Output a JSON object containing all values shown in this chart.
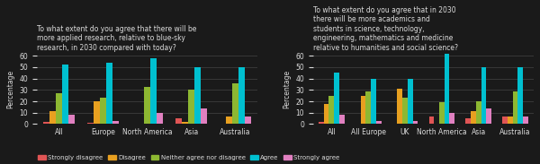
{
  "chart1": {
    "title": "To what extent do you agree that there will be\nmore applied research, relative to blue-sky\nresearch, in 2030 compared with today?",
    "categories": [
      "All",
      "Europe",
      "North America",
      "Asia",
      "Australia"
    ],
    "series": {
      "Strongly disagree": [
        2,
        1,
        0,
        5,
        0
      ],
      "Disagree": [
        11,
        20,
        0,
        2,
        7
      ],
      "Neither agree nor disagree": [
        27,
        23,
        33,
        30,
        36
      ],
      "Agree": [
        52,
        54,
        58,
        50,
        50
      ],
      "Strongly agree": [
        8,
        3,
        10,
        14,
        7
      ]
    }
  },
  "chart2": {
    "title": "To what extent do you agree that in 2030\nthere will be more academics and\nstudents in science, technology,\nengineering, mathematics and medicine\nrelative to humanities and social science?",
    "categories": [
      "All",
      "All Europe",
      "UK",
      "North America",
      "Asia",
      "Australia"
    ],
    "series": {
      "Strongly disagree": [
        2,
        0,
        0,
        7,
        5,
        7
      ],
      "Disagree": [
        18,
        25,
        31,
        0,
        11,
        7
      ],
      "Neither agree nor disagree": [
        25,
        29,
        23,
        19,
        20,
        29
      ],
      "Agree": [
        45,
        40,
        40,
        62,
        50,
        50
      ],
      "Strongly agree": [
        8,
        3,
        3,
        10,
        14,
        7
      ]
    }
  },
  "colors": {
    "Strongly disagree": "#e05555",
    "Disagree": "#e8a020",
    "Neither agree nor disagree": "#8db832",
    "Agree": "#00c0d0",
    "Strongly agree": "#e080c0"
  },
  "ylabel": "Percentage",
  "ylim": [
    0,
    62
  ],
  "yticks": [
    0,
    10,
    20,
    30,
    40,
    50,
    60
  ],
  "bg_color": "#1a1a1a",
  "text_color": "#dddddd",
  "grid_color": "#444444",
  "title_fontsize": 5.5,
  "label_fontsize": 5.5,
  "legend_fontsize": 5.0,
  "bar_width": 0.14
}
